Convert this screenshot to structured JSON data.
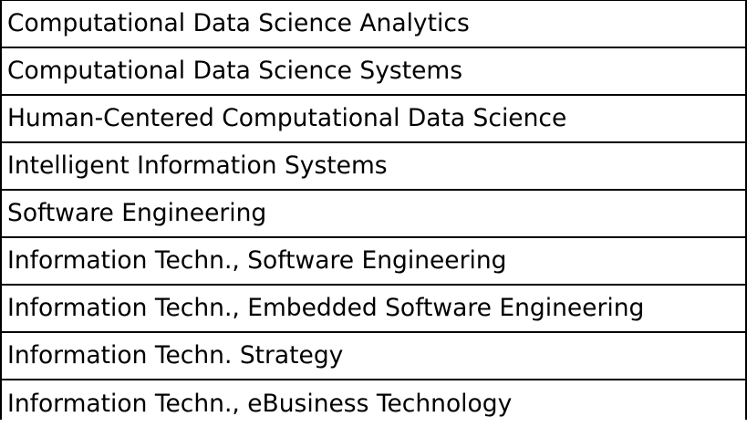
{
  "table": {
    "rows": [
      "Computational Data Science Analytics",
      "Computational Data Science Systems",
      "Human-Centered Computational Data Science",
      "Intelligent Information Systems",
      "Software Engineering",
      "Information Techn., Software Engineering",
      "Information Techn., Embedded Software Engineering",
      "Information Techn. Strategy",
      "Information Techn., eBusiness Technology"
    ]
  }
}
